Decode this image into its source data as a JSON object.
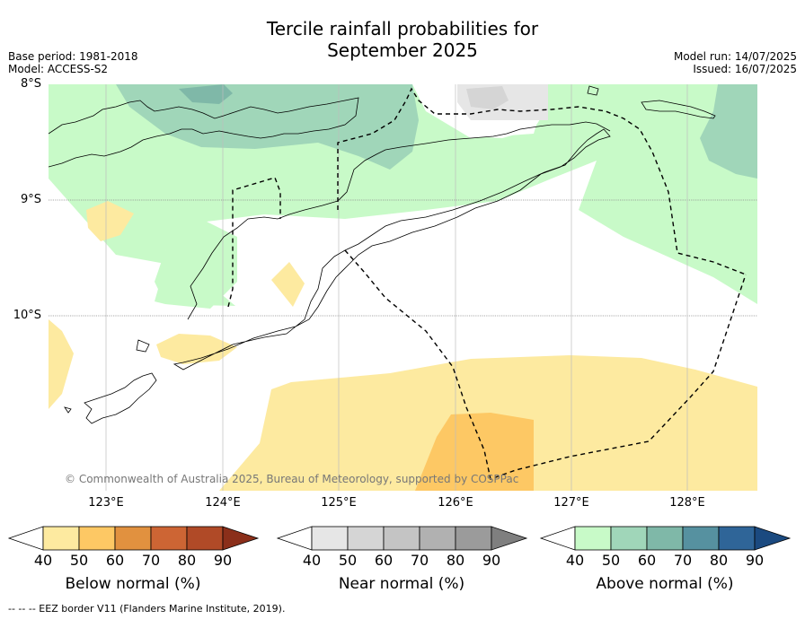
{
  "title_line1": "Tercile rainfall probabilities for",
  "title_line2": "September 2025",
  "meta_left": {
    "base_period": "Base period: 1981-2018",
    "model": "Model: ACCESS-S2"
  },
  "meta_right": {
    "model_run": "Model run: 14/07/2025",
    "issued": "Issued: 16/07/2025"
  },
  "map": {
    "lat_labels": [
      "8°S",
      "9°S",
      "10°S"
    ],
    "lon_labels": [
      "123°E",
      "124°E",
      "125°E",
      "126°E",
      "127°E",
      "128°E"
    ],
    "copyright": "© Commonwealth of Australia 2025, Bureau of Meteorology, supported by COSPPac"
  },
  "colorbars": [
    {
      "title": "Below normal (%)",
      "ticks": [
        "40",
        "50",
        "60",
        "70",
        "80",
        "90"
      ],
      "colors": [
        "#fdeaa0",
        "#fdc864",
        "#e1913f",
        "#cd6534",
        "#b04a27",
        "#8b2f1a"
      ]
    },
    {
      "title": "Near normal (%)",
      "ticks": [
        "40",
        "50",
        "60",
        "70",
        "80",
        "90"
      ],
      "colors": [
        "#e6e6e6",
        "#d5d5d5",
        "#c4c4c4",
        "#b1b1b1",
        "#9b9b9b",
        "#7f7f7f"
      ]
    },
    {
      "title": "Above normal (%)",
      "ticks": [
        "40",
        "50",
        "60",
        "70",
        "80",
        "90"
      ],
      "colors": [
        "#c8fac8",
        "#a0d6b9",
        "#7fb8a8",
        "#5691a0",
        "#2f6598",
        "#1b4a80"
      ]
    }
  ],
  "footer": "--  --  -- EEZ border V11 (Flanders Marine Institute, 2019)."
}
